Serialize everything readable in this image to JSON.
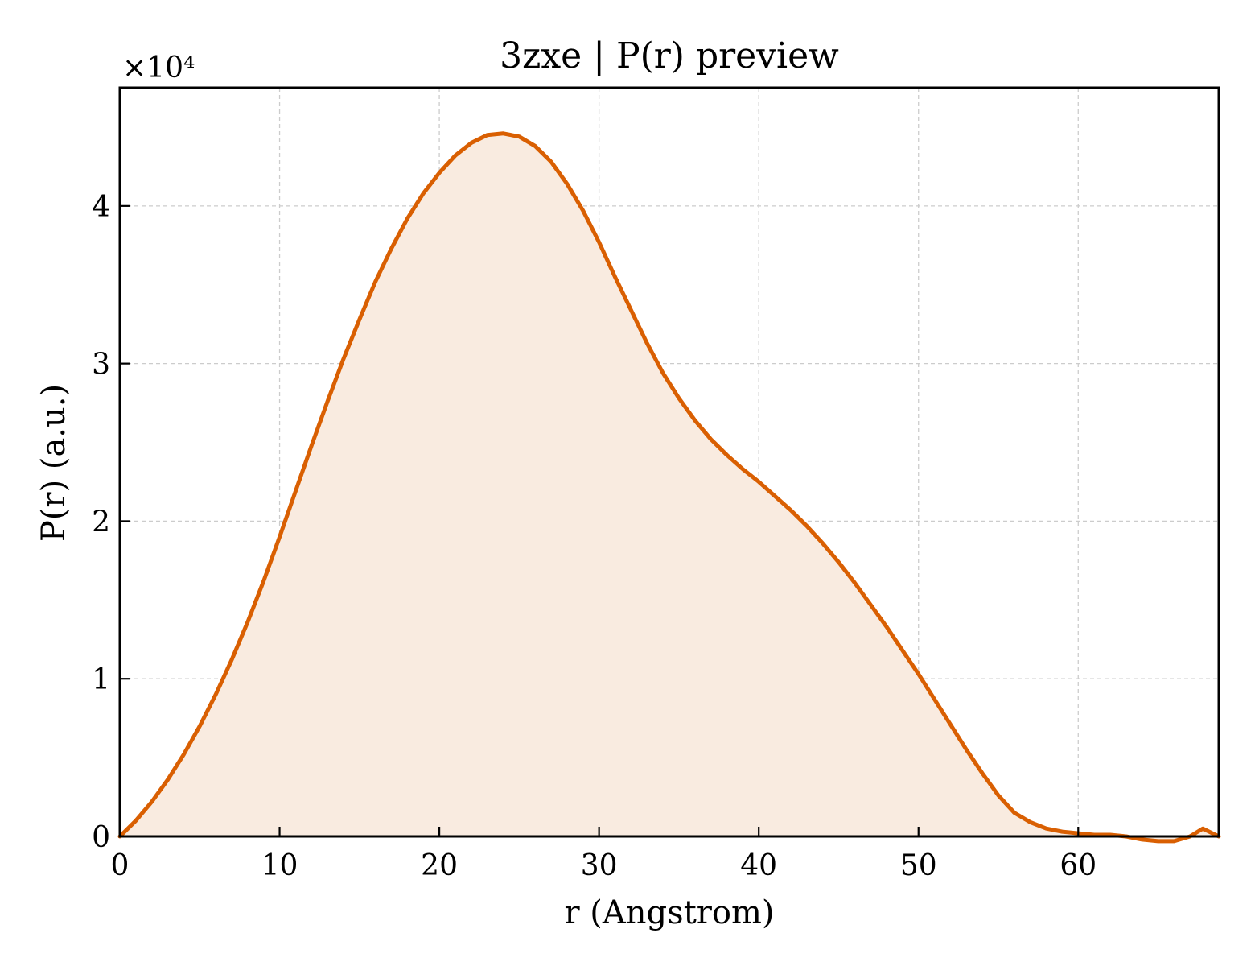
{
  "chart_data": {
    "type": "area",
    "title": "3zxe | P(r) preview",
    "xlabel": "r (Angstrom)",
    "ylabel": "P(r) (a.u.)",
    "y_multiplier_label": "×10⁴",
    "xlim": [
      0,
      68.8
    ],
    "ylim": [
      0,
      4.75
    ],
    "xticks": [
      0,
      10,
      20,
      30,
      40,
      50,
      60
    ],
    "xtick_labels": [
      "0",
      "10",
      "20",
      "30",
      "40",
      "50",
      "60"
    ],
    "yticks": [
      0,
      1,
      2,
      3,
      4
    ],
    "ytick_labels": [
      "0",
      "1",
      "2",
      "3",
      "4"
    ],
    "grid": true,
    "line_color": "#d95f02",
    "fill_color": "#f9ebe0",
    "series": [
      {
        "x": [
          0,
          1,
          2,
          3,
          4,
          5,
          6,
          7,
          8,
          9,
          10,
          11,
          12,
          13,
          14,
          15,
          16,
          17,
          18,
          19,
          20,
          21,
          22,
          23,
          24,
          25,
          26,
          27,
          28,
          29,
          30,
          31,
          32,
          33,
          34,
          35,
          36,
          37,
          38,
          39,
          40,
          41,
          42,
          43,
          44,
          45,
          46,
          47,
          48,
          49,
          50,
          51,
          52,
          53,
          54,
          55,
          56,
          57,
          58,
          59,
          60,
          61,
          62,
          63,
          64,
          65,
          66,
          67,
          67.8,
          68.8
        ],
        "y": [
          0.0,
          0.1,
          0.22,
          0.36,
          0.52,
          0.7,
          0.9,
          1.12,
          1.36,
          1.62,
          1.9,
          2.19,
          2.48,
          2.76,
          3.03,
          3.28,
          3.52,
          3.73,
          3.92,
          4.08,
          4.21,
          4.32,
          4.4,
          4.45,
          4.46,
          4.44,
          4.38,
          4.28,
          4.14,
          3.97,
          3.77,
          3.55,
          3.34,
          3.13,
          2.94,
          2.78,
          2.64,
          2.52,
          2.42,
          2.33,
          2.25,
          2.16,
          2.07,
          1.97,
          1.86,
          1.74,
          1.61,
          1.47,
          1.33,
          1.18,
          1.03,
          0.87,
          0.71,
          0.55,
          0.4,
          0.26,
          0.15,
          0.09,
          0.05,
          0.03,
          0.02,
          0.01,
          0.01,
          0.0,
          -0.02,
          -0.03,
          -0.03,
          0.0,
          0.05,
          0.0
        ]
      }
    ]
  }
}
